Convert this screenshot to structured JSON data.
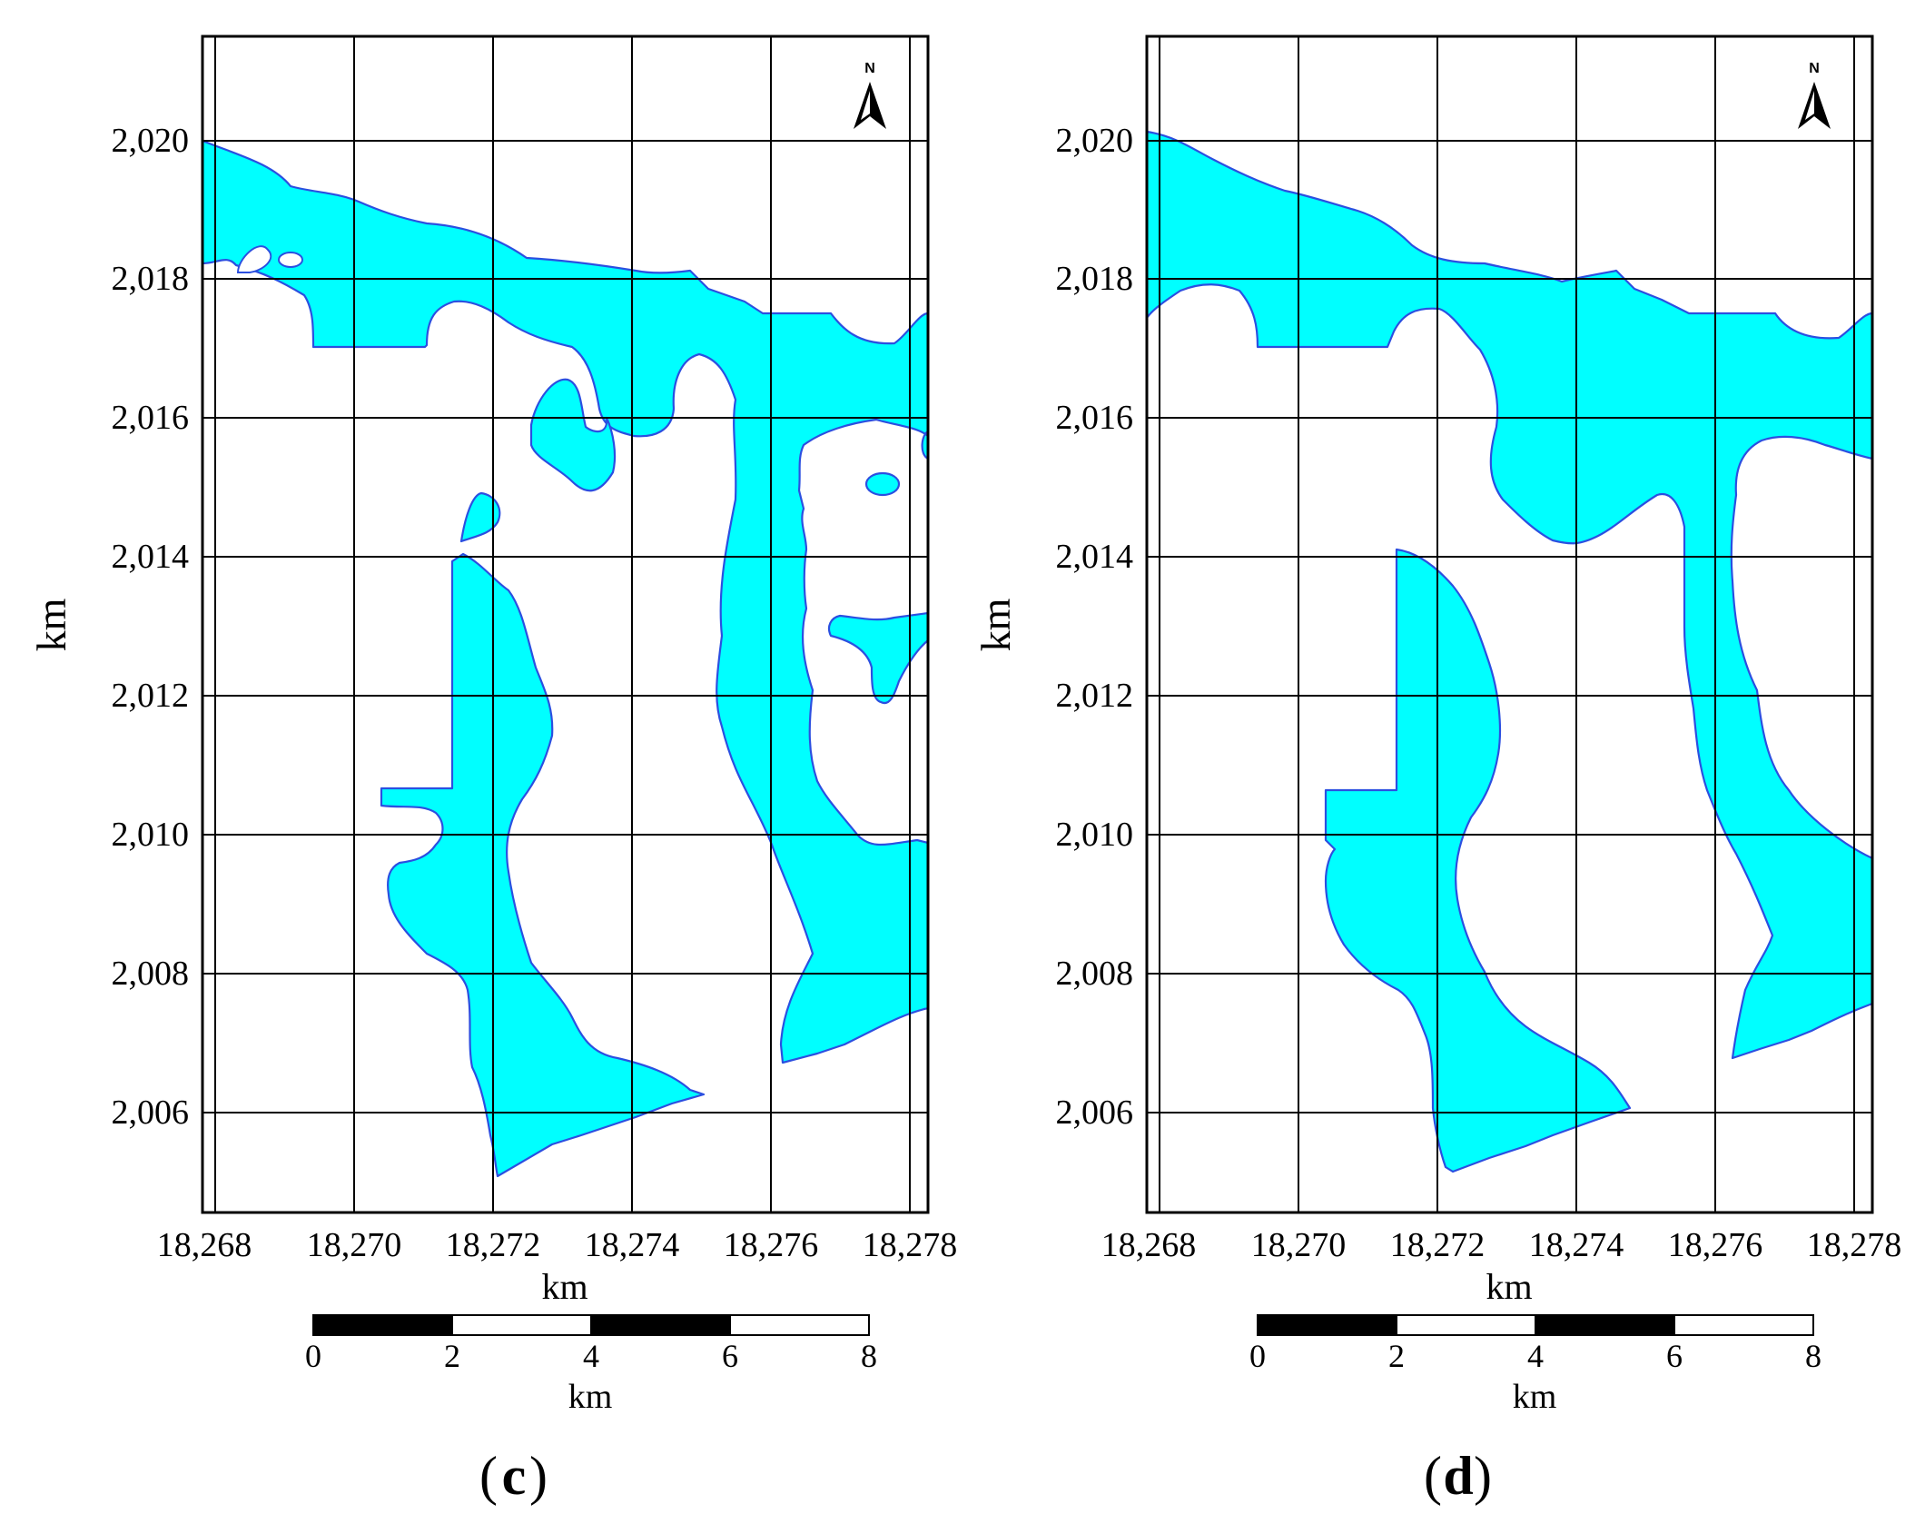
{
  "colors": {
    "water": "#00ffff",
    "water_outline": "#2b4fe0",
    "grid": "#000000",
    "background": "#ffffff"
  },
  "panels": [
    {
      "id": "c",
      "caption_letter": "c",
      "y_axis_label": "km",
      "x_axis_label": "km",
      "x_ticks": [
        "18,268",
        "18,270",
        "18,272",
        "18,274",
        "18,276",
        "18,278"
      ],
      "y_ticks": [
        "2,020",
        "2,018",
        "2,016",
        "2,014",
        "2,012",
        "2,010",
        "2,008",
        "2,006"
      ],
      "north_label": "N",
      "scale_bar": {
        "labels": [
          "0",
          "2",
          "4",
          "6",
          "8"
        ],
        "unit": "km"
      }
    },
    {
      "id": "d",
      "caption_letter": "d",
      "y_axis_label": "km",
      "x_axis_label": "km",
      "x_ticks": [
        "18,268",
        "18,270",
        "18,272",
        "18,274",
        "18,276",
        "18,278"
      ],
      "y_ticks": [
        "2,020",
        "2,018",
        "2,016",
        "2,014",
        "2,012",
        "2,010",
        "2,008",
        "2,006"
      ],
      "north_label": "N",
      "scale_bar": {
        "labels": [
          "0",
          "2",
          "4",
          "6",
          "8"
        ],
        "unit": "km"
      }
    }
  ]
}
